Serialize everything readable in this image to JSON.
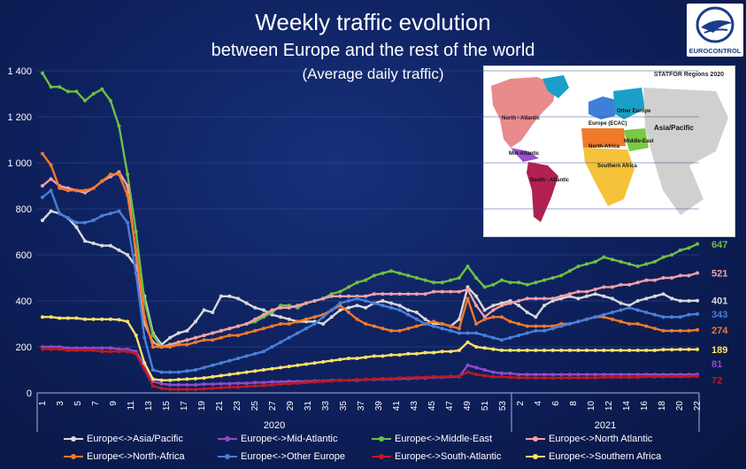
{
  "header": {
    "title": "Weekly traffic evolution",
    "subtitle": "between Europe and the rest of the world",
    "subsubtitle": "(Average daily traffic)",
    "logo_text": "EUROCONTROL"
  },
  "map_inset": {
    "title": "STATFOR Regions 2020",
    "regions": [
      "North - Atlantic",
      "Mid-Atlantic",
      "South - Atlantic",
      "Europe (ECAC)",
      "Other Europe",
      "North-Africa",
      "Middle-East",
      "Southern Africa",
      "Asia/Pacific"
    ],
    "region_colors": {
      "North - Atlantic": "#e98a8c",
      "Mid-Atlantic": "#9b4fd0",
      "South - Atlantic": "#b02050",
      "Europe (ECAC)": "#3f7fd8",
      "Other Europe": "#1aa0c8",
      "North-Africa": "#f07a2a",
      "Middle-East": "#7ac943",
      "Southern Africa": "#f6c23a",
      "Asia/Pacific": "#d0d0d0"
    }
  },
  "chart_data": {
    "type": "line",
    "title": "Weekly traffic evolution",
    "ylim": [
      0,
      1400
    ],
    "yticks": [
      0,
      200,
      400,
      600,
      800,
      "1 000",
      "1 200",
      "1 400"
    ],
    "x_tick_labels": [
      "1",
      "3",
      "5",
      "7",
      "9",
      "11",
      "13",
      "15",
      "17",
      "19",
      "21",
      "23",
      "25",
      "27",
      "29",
      "31",
      "33",
      "35",
      "37",
      "39",
      "41",
      "43",
      "45",
      "47",
      "49",
      "51",
      "53",
      "2",
      "4",
      "6",
      "8",
      "10",
      "12",
      "14",
      "16",
      "18",
      "20",
      "22"
    ],
    "year_labels": [
      "2020",
      "2021"
    ],
    "grid": true,
    "series": [
      {
        "name": "Europe<->Asia/Pacific",
        "color": "#d9d9d9",
        "end_label": "401",
        "values": [
          750,
          790,
          780,
          760,
          720,
          660,
          650,
          640,
          640,
          620,
          600,
          550,
          420,
          260,
          210,
          240,
          260,
          270,
          310,
          360,
          350,
          420,
          420,
          410,
          390,
          370,
          360,
          340,
          330,
          320,
          310,
          310,
          310,
          300,
          330,
          360,
          370,
          380,
          370,
          390,
          400,
          390,
          380,
          360,
          350,
          320,
          300,
          300,
          290,
          320,
          460,
          420,
          360,
          380,
          390,
          400,
          380,
          350,
          330,
          380,
          400,
          410,
          420,
          410,
          420,
          430,
          420,
          410,
          390,
          380,
          400,
          410,
          420,
          430,
          410,
          400,
          400,
          401
        ]
      },
      {
        "name": "Europe<->Mid-Atlantic",
        "color": "#8e4bc8",
        "end_label": "81",
        "values": [
          200,
          200,
          200,
          195,
          195,
          195,
          195,
          195,
          195,
          190,
          190,
          180,
          120,
          50,
          40,
          35,
          35,
          35,
          35,
          38,
          38,
          40,
          40,
          42,
          42,
          45,
          45,
          48,
          48,
          50,
          50,
          50,
          52,
          52,
          55,
          55,
          55,
          55,
          58,
          58,
          60,
          60,
          62,
          62,
          65,
          65,
          68,
          68,
          70,
          70,
          120,
          110,
          100,
          90,
          85,
          85,
          80,
          80,
          80,
          80,
          80,
          80,
          80,
          80,
          80,
          80,
          80,
          80,
          80,
          80,
          80,
          80,
          80,
          80,
          80,
          80,
          80,
          81
        ]
      },
      {
        "name": "Europe<->Middle-East",
        "color": "#6fbe45",
        "end_label": "647",
        "values": [
          1390,
          1330,
          1330,
          1310,
          1310,
          1270,
          1300,
          1320,
          1270,
          1160,
          950,
          700,
          400,
          250,
          200,
          210,
          220,
          230,
          240,
          250,
          260,
          270,
          280,
          290,
          300,
          310,
          330,
          350,
          380,
          380,
          370,
          390,
          400,
          410,
          430,
          440,
          460,
          480,
          490,
          510,
          520,
          530,
          520,
          510,
          500,
          490,
          480,
          480,
          490,
          500,
          550,
          500,
          460,
          470,
          490,
          480,
          480,
          470,
          480,
          490,
          500,
          510,
          530,
          550,
          560,
          570,
          590,
          580,
          570,
          560,
          550,
          560,
          570,
          590,
          600,
          620,
          630,
          647
        ]
      },
      {
        "name": "Europe<->North Atlantic",
        "color": "#f4a0a8",
        "end_label": "521",
        "values": [
          900,
          930,
          900,
          890,
          880,
          870,
          890,
          920,
          940,
          960,
          900,
          600,
          300,
          220,
          200,
          210,
          220,
          230,
          240,
          250,
          260,
          270,
          280,
          290,
          300,
          320,
          340,
          360,
          370,
          370,
          380,
          390,
          400,
          410,
          420,
          420,
          420,
          420,
          420,
          430,
          430,
          430,
          430,
          430,
          430,
          430,
          440,
          440,
          440,
          440,
          450,
          380,
          330,
          360,
          380,
          390,
          400,
          410,
          410,
          410,
          410,
          420,
          430,
          440,
          440,
          450,
          460,
          460,
          470,
          470,
          480,
          490,
          490,
          500,
          500,
          510,
          510,
          521
        ]
      },
      {
        "name": "Europe<->North-Africa",
        "color": "#f07a2a",
        "end_label": "274",
        "values": [
          1040,
          990,
          890,
          880,
          880,
          880,
          890,
          920,
          950,
          950,
          860,
          620,
          330,
          200,
          200,
          200,
          210,
          210,
          220,
          230,
          230,
          240,
          250,
          250,
          260,
          270,
          280,
          290,
          300,
          300,
          310,
          320,
          330,
          340,
          360,
          380,
          350,
          320,
          300,
          290,
          280,
          270,
          270,
          280,
          290,
          300,
          310,
          300,
          290,
          280,
          410,
          300,
          320,
          330,
          330,
          310,
          300,
          290,
          290,
          290,
          290,
          300,
          300,
          310,
          320,
          330,
          330,
          320,
          310,
          300,
          300,
          290,
          280,
          270,
          270,
          270,
          270,
          274
        ]
      },
      {
        "name": "Europe<->Other Europe",
        "color": "#4a7fd8",
        "end_label": "343",
        "values": [
          850,
          880,
          780,
          760,
          740,
          740,
          750,
          770,
          780,
          790,
          740,
          520,
          240,
          100,
          90,
          90,
          90,
          95,
          100,
          110,
          120,
          130,
          140,
          150,
          160,
          170,
          180,
          200,
          220,
          240,
          260,
          280,
          300,
          330,
          360,
          390,
          400,
          410,
          400,
          390,
          380,
          370,
          360,
          340,
          320,
          300,
          290,
          280,
          270,
          260,
          260,
          260,
          250,
          240,
          230,
          240,
          250,
          260,
          270,
          270,
          280,
          290,
          300,
          310,
          320,
          330,
          340,
          350,
          360,
          370,
          360,
          350,
          340,
          330,
          330,
          330,
          340,
          343
        ]
      },
      {
        "name": "Europe<->South-Atlantic",
        "color": "#c01820",
        "end_label": "72",
        "values": [
          190,
          190,
          190,
          185,
          185,
          185,
          185,
          180,
          180,
          180,
          180,
          170,
          100,
          30,
          20,
          15,
          15,
          15,
          15,
          18,
          20,
          22,
          25,
          25,
          28,
          30,
          32,
          35,
          38,
          40,
          42,
          45,
          48,
          50,
          52,
          55,
          55,
          58,
          58,
          60,
          62,
          62,
          65,
          65,
          68,
          68,
          70,
          70,
          72,
          72,
          90,
          80,
          75,
          70,
          70,
          68,
          66,
          66,
          65,
          65,
          65,
          65,
          66,
          66,
          66,
          66,
          68,
          68,
          68,
          68,
          68,
          70,
          70,
          70,
          70,
          70,
          71,
          72
        ]
      },
      {
        "name": "Europe<->Southern Africa",
        "color": "#ffe066",
        "end_label": "189",
        "values": [
          330,
          330,
          325,
          325,
          325,
          320,
          320,
          320,
          320,
          318,
          310,
          250,
          130,
          60,
          55,
          55,
          58,
          60,
          62,
          65,
          70,
          75,
          80,
          85,
          90,
          95,
          100,
          105,
          110,
          115,
          120,
          125,
          130,
          135,
          140,
          145,
          150,
          150,
          155,
          160,
          160,
          165,
          165,
          170,
          170,
          175,
          175,
          180,
          180,
          185,
          220,
          200,
          195,
          190,
          185,
          185,
          185,
          185,
          185,
          185,
          185,
          185,
          185,
          185,
          185,
          185,
          185,
          185,
          185,
          185,
          185,
          185,
          185,
          188,
          188,
          189,
          189,
          189
        ]
      }
    ]
  }
}
